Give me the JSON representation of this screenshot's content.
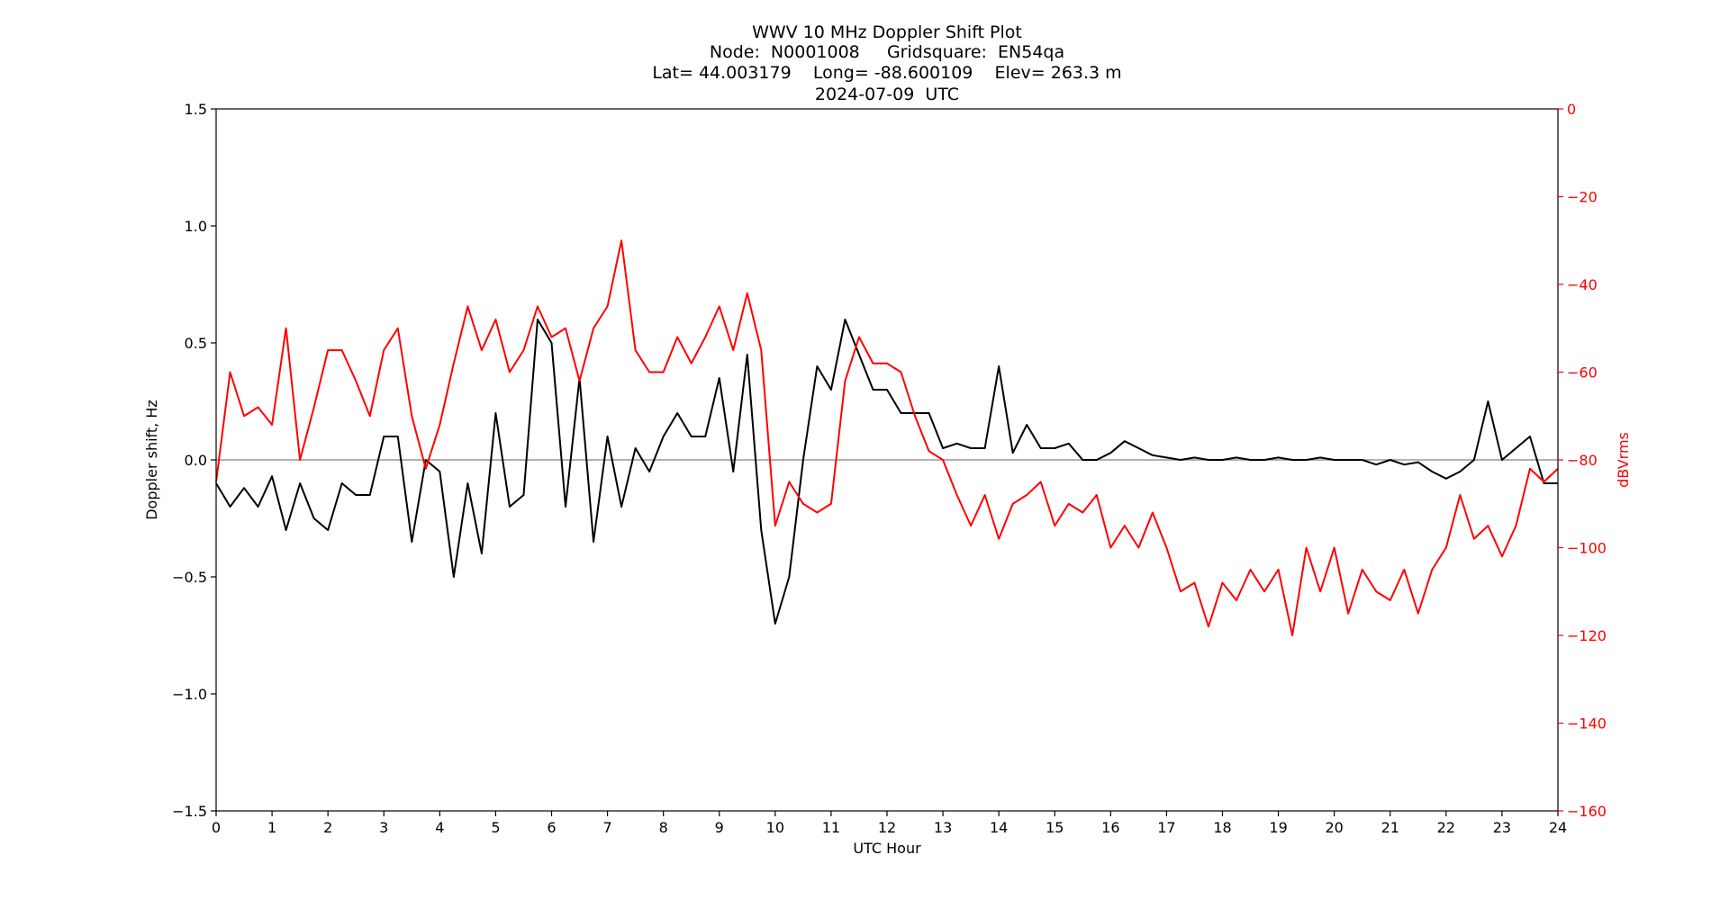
{
  "chart_data": {
    "type": "line",
    "title": [
      "WWV 10 MHz Doppler Shift Plot",
      "Node:  N0001008     Gridsquare:  EN54qa",
      "Lat= 44.003179    Long= -88.600109    Elev= 263.3 m",
      "2024-07-09  UTC"
    ],
    "xlabel": "UTC Hour",
    "ylabel": "Doppler shift, Hz",
    "y2label": "dBVrms",
    "y2color": "#ff0000",
    "xlim": [
      0,
      24
    ],
    "xticks": [
      0,
      1,
      2,
      3,
      4,
      5,
      6,
      7,
      8,
      9,
      10,
      11,
      12,
      13,
      14,
      15,
      16,
      17,
      18,
      19,
      20,
      21,
      22,
      23,
      24
    ],
    "ylim": [
      -1.5,
      1.5
    ],
    "yticks": [
      {
        "value": -1.5,
        "label": "−1.5"
      },
      {
        "value": -1,
        "label": "−1.0"
      },
      {
        "value": -0.5,
        "label": "−0.5"
      },
      {
        "value": 0,
        "label": "0.0"
      },
      0.5,
      {
        "value": 1,
        "label": "1.0"
      },
      1.5
    ],
    "y2lim": [
      -160,
      0
    ],
    "y2ticks": [
      0,
      {
        "value": -20,
        "label": "−20"
      },
      {
        "value": -40,
        "label": "−40"
      },
      {
        "value": -60,
        "label": "−60"
      },
      {
        "value": -80,
        "label": "−80"
      },
      {
        "value": -100,
        "label": "−100"
      },
      {
        "value": -120,
        "label": "−120"
      },
      {
        "value": -140,
        "label": "−140"
      },
      {
        "value": -160,
        "label": "−160"
      }
    ],
    "hline": 0,
    "hline_color": "#999999",
    "x": [
      0,
      0.25,
      0.5,
      0.75,
      1,
      1.25,
      1.5,
      1.75,
      2,
      2.25,
      2.5,
      2.75,
      3,
      3.25,
      3.5,
      3.75,
      4,
      4.25,
      4.5,
      4.75,
      5,
      5.25,
      5.5,
      5.75,
      6,
      6.25,
      6.5,
      6.75,
      7,
      7.25,
      7.5,
      7.75,
      8,
      8.25,
      8.5,
      8.75,
      9,
      9.25,
      9.5,
      9.75,
      10,
      10.25,
      10.5,
      10.75,
      11,
      11.25,
      11.5,
      11.75,
      12,
      12.25,
      12.5,
      12.75,
      13,
      13.25,
      13.5,
      13.75,
      14,
      14.25,
      14.5,
      14.75,
      15,
      15.25,
      15.5,
      15.75,
      16,
      16.25,
      16.5,
      16.75,
      17,
      17.25,
      17.5,
      17.75,
      18,
      18.25,
      18.5,
      18.75,
      19,
      19.25,
      19.5,
      19.75,
      20,
      20.25,
      20.5,
      20.75,
      21,
      21.25,
      21.5,
      21.75,
      22,
      22.25,
      22.5,
      22.75,
      23,
      23.25,
      23.5,
      23.75,
      24
    ],
    "series": [
      {
        "color": "#000000",
        "values": [
          -0.1,
          -0.2,
          -0.12,
          -0.2,
          -0.07,
          -0.3,
          -0.1,
          -0.25,
          -0.3,
          -0.1,
          -0.15,
          -0.15,
          0.1,
          0.1,
          -0.35,
          0.0,
          -0.05,
          -0.5,
          -0.1,
          -0.4,
          0.2,
          -0.2,
          -0.15,
          0.6,
          0.5,
          -0.2,
          0.35,
          -0.35,
          0.1,
          -0.2,
          0.05,
          -0.05,
          0.1,
          0.2,
          0.1,
          0.1,
          0.35,
          -0.05,
          0.45,
          -0.3,
          -0.7,
          -0.5,
          0.0,
          0.4,
          0.3,
          0.6,
          0.45,
          0.3,
          0.3,
          0.2,
          0.2,
          0.2,
          0.05,
          0.07,
          0.05,
          0.05,
          0.4,
          0.03,
          0.15,
          0.05,
          0.05,
          0.07,
          0.0,
          0.0,
          0.03,
          0.08,
          0.05,
          0.02,
          0.01,
          0.0,
          0.01,
          0.0,
          0.0,
          0.01,
          0.0,
          0.0,
          0.01,
          0.0,
          0.0,
          0.01,
          0.0,
          0.0,
          0.0,
          -0.02,
          0.0,
          -0.02,
          -0.01,
          -0.05,
          -0.08,
          -0.05,
          0.0,
          0.25,
          0.0,
          0.05,
          0.1,
          -0.1,
          -0.1
        ]
      },
      {
        "color": "#ff0000",
        "axis": "y2",
        "values": [
          -85,
          -60,
          -70,
          -68,
          -72,
          -50,
          -80,
          -68,
          -55,
          -55,
          -62,
          -70,
          -55,
          -50,
          -70,
          -82,
          -72,
          -58,
          -45,
          -55,
          -48,
          -60,
          -55,
          -45,
          -52,
          -50,
          -62,
          -50,
          -45,
          -30,
          -55,
          -60,
          -60,
          -52,
          -58,
          -52,
          -45,
          -55,
          -42,
          -55,
          -95,
          -85,
          -90,
          -92,
          -90,
          -62,
          -52,
          -58,
          -58,
          -60,
          -70,
          -78,
          -80,
          -88,
          -95,
          -88,
          -98,
          -90,
          -88,
          -85,
          -95,
          -90,
          -92,
          -88,
          -100,
          -95,
          -100,
          -92,
          -100,
          -110,
          -108,
          -118,
          -108,
          -112,
          -105,
          -110,
          -105,
          -120,
          -100,
          -110,
          -100,
          -115,
          -105,
          -110,
          -112,
          -105,
          -115,
          -105,
          -100,
          -88,
          -98,
          -95,
          -102,
          -95,
          -82,
          -85,
          -82
        ]
      }
    ]
  }
}
